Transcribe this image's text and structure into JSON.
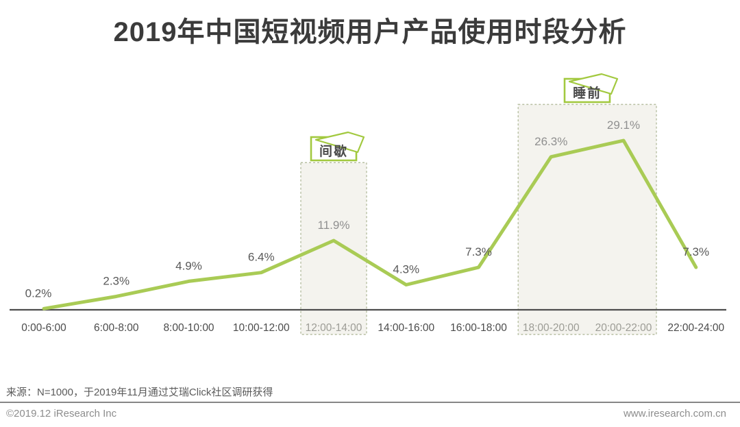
{
  "page": {
    "title": "2019年中国短视频用户产品使用时段分析",
    "footer": {
      "source_note": "来源：N=1000，于2019年11月通过艾瑞Click社区调研获得",
      "copyright": "©2019.12 iResearch Inc",
      "website": "www.iresearch.com.cn"
    }
  },
  "colors": {
    "line": "#a9cb55",
    "annotation_border": "#a2c93f",
    "annotation_text": "#4a4a4a",
    "region_fill": "#f4f3ee",
    "region_border": "#b7bfa2",
    "axis": "#4d4d4d",
    "tick_dark": "#4b4b4b",
    "tick_light": "#9c9c95",
    "value_dark": "#595959",
    "value_light": "#8f8f8f",
    "title_text": "#3b3b3b",
    "source_text": "#5a5a5a",
    "footer_text": "#8d8d8d",
    "divider": "#868686"
  },
  "chart_data": {
    "type": "line",
    "title": "2019年中国短视频用户产品使用时段分析",
    "unit": "%",
    "categories": [
      "0:00-6:00",
      "6:00-8:00",
      "8:00-10:00",
      "10:00-12:00",
      "12:00-14:00",
      "14:00-16:00",
      "16:00-18:00",
      "18:00-20:00",
      "20:00-22:00",
      "22:00-24:00"
    ],
    "values": [
      0.2,
      2.3,
      4.9,
      6.4,
      11.9,
      4.3,
      7.3,
      26.3,
      29.1,
      7.3
    ],
    "value_labels": [
      "0.2%",
      "2.3%",
      "4.9%",
      "6.4%",
      "11.9%",
      "4.3%",
      "7.3%",
      "26.3%",
      "29.1%",
      "7.3%"
    ],
    "xlabel": "",
    "ylabel": "",
    "ylim": [
      0,
      32
    ],
    "grid": false,
    "legend": false,
    "highlight_regions": [
      {
        "label": "间歇",
        "category_span": [
          4,
          4
        ],
        "top_pct": 25.3
      },
      {
        "label": "睡前",
        "category_span": [
          7,
          8
        ],
        "top_pct": 35.3
      }
    ]
  }
}
